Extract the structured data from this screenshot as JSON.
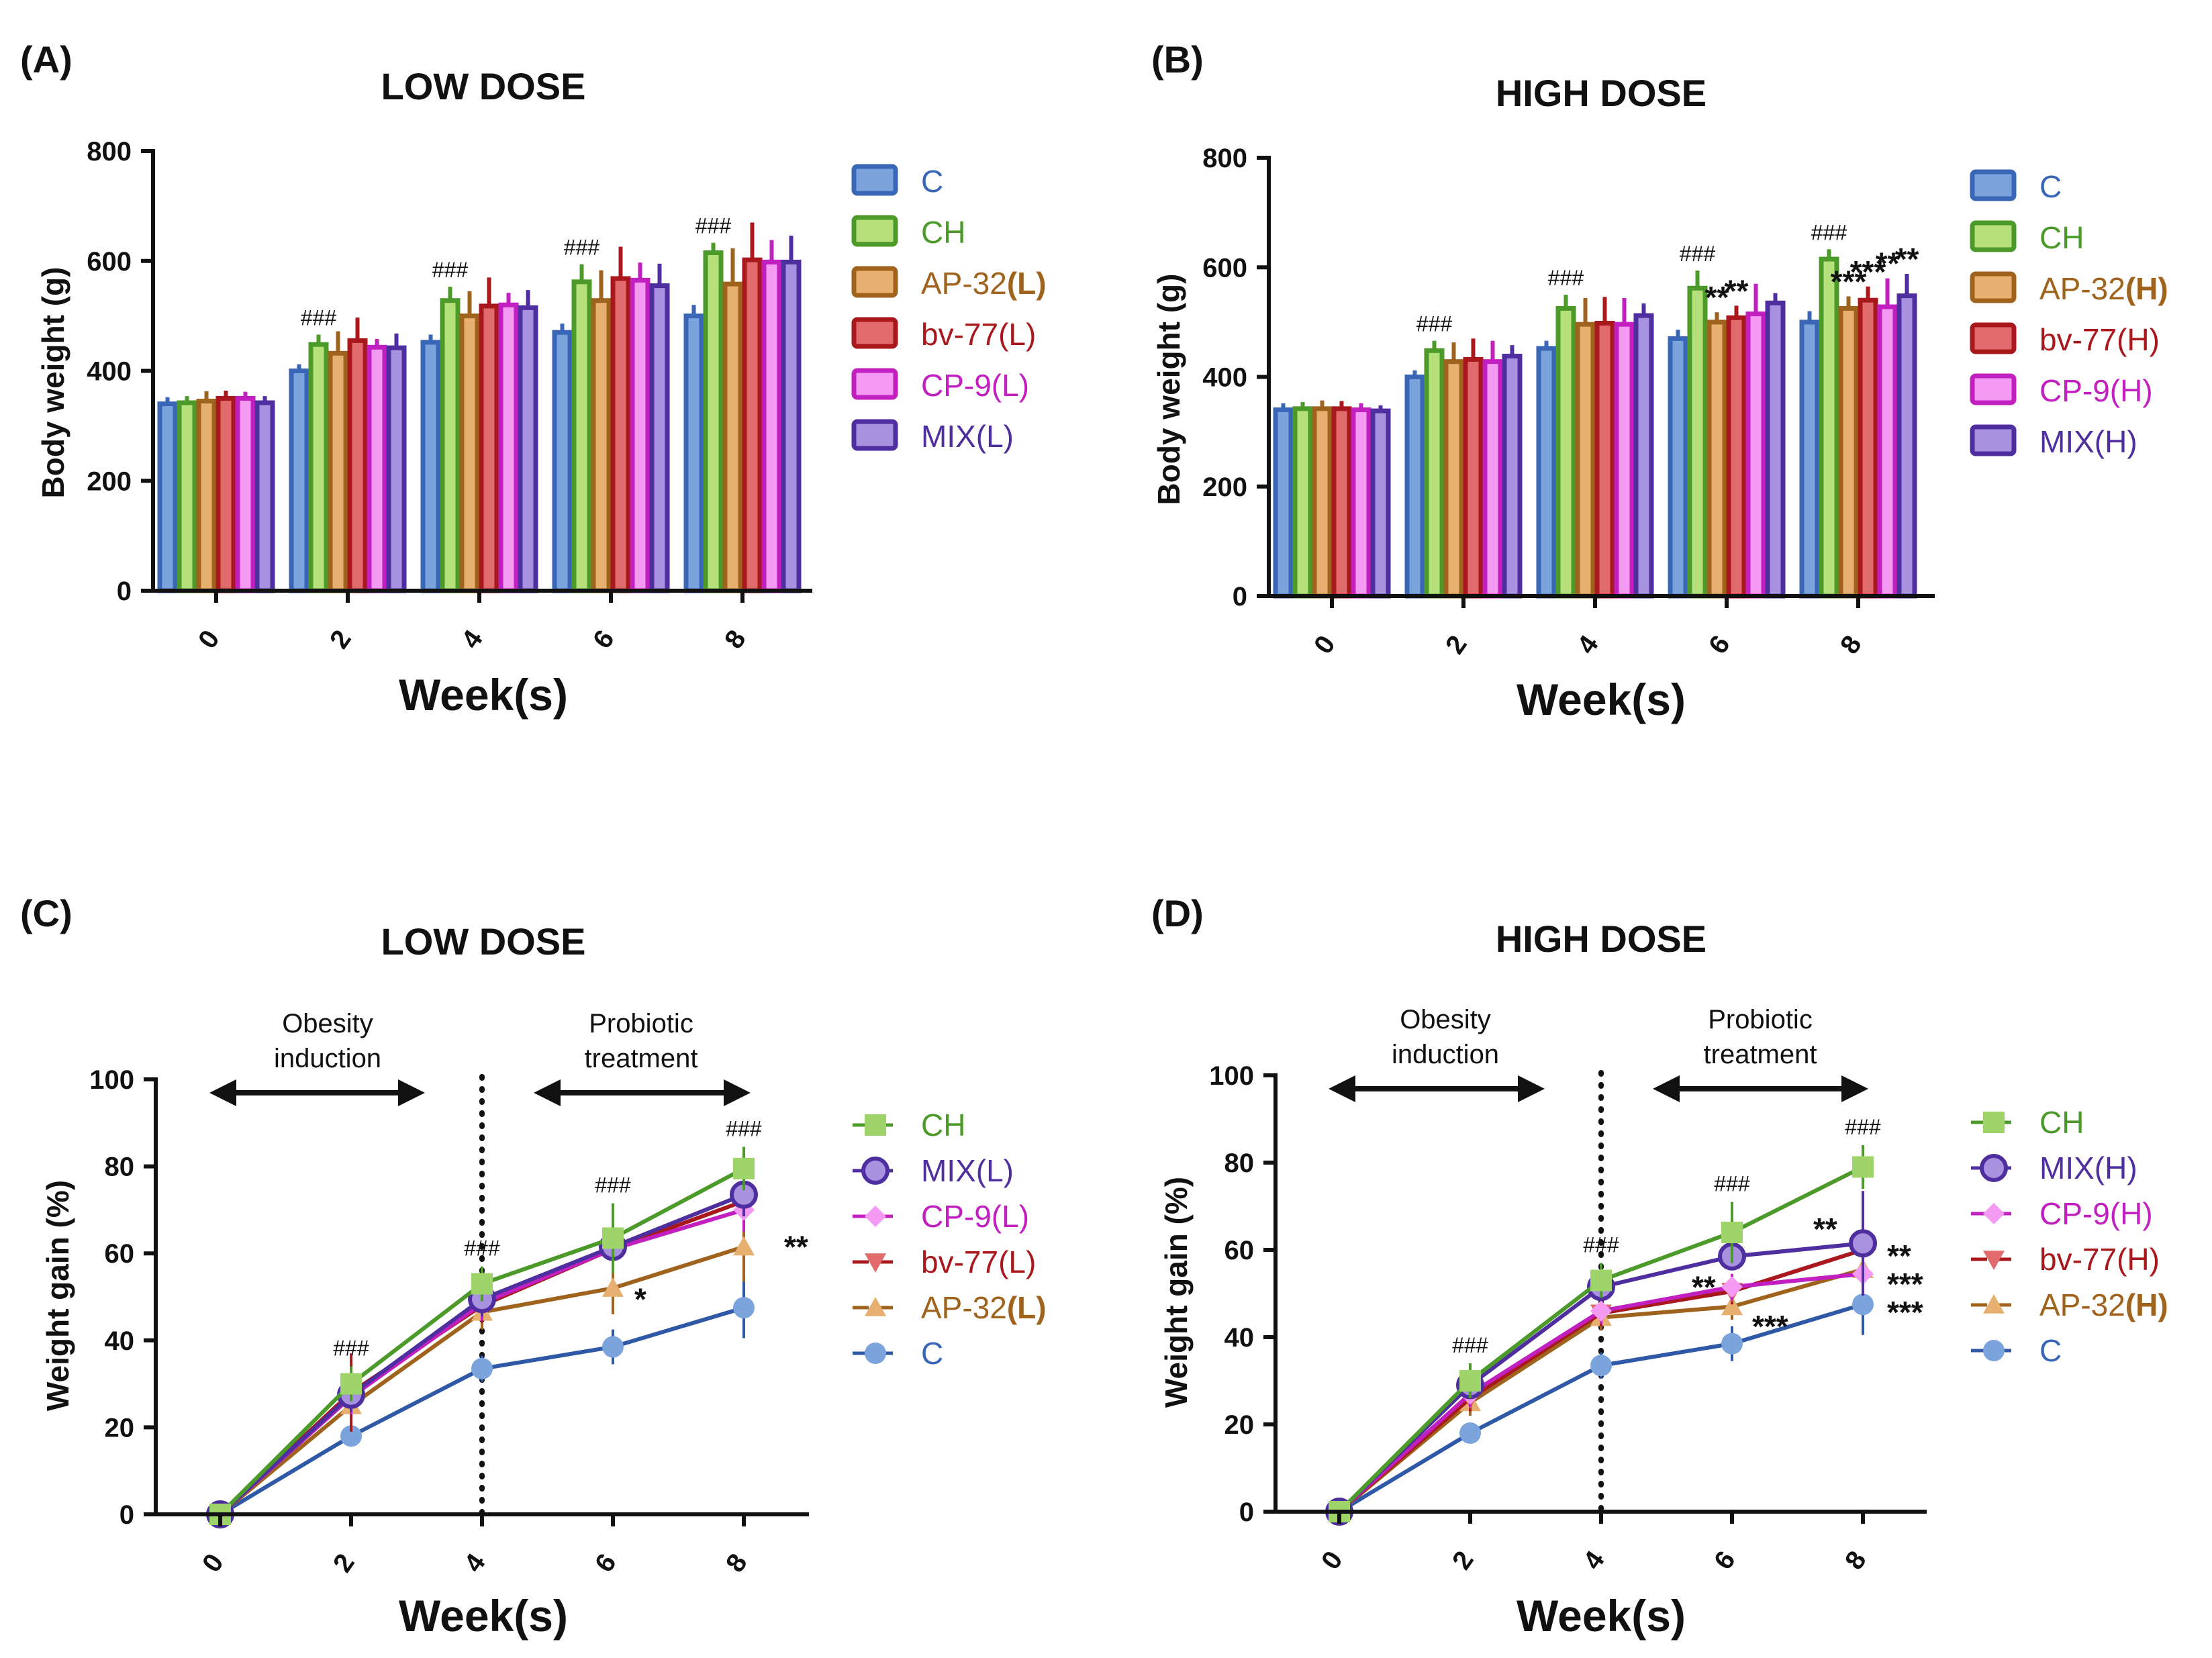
{
  "colors": {
    "C": "#3a66b8",
    "C_line": "#2f59a6",
    "C_fill": "#7ba3dc",
    "CH": "#4c9a2a",
    "CH_fill": "#b6e07c",
    "CH_marker": "#9fd46a",
    "AP": "#a0631d",
    "AP_fill": "#e8b070",
    "BV": "#a8181c",
    "BV_fill": "#e06a6c",
    "CP": "#c11fbf",
    "CP_fill": "#f49af3",
    "MIX": "#4f2fa0",
    "MIX_fill": "#a892df"
  },
  "panels": {
    "A": {
      "label": "(A)",
      "title": "LOW DOSE",
      "ylabel": "Body weight (g)",
      "xlabel": "Week(s)",
      "legend": [
        {
          "key": "C",
          "pre": "C",
          "bold": ""
        },
        {
          "key": "CH",
          "pre": "CH",
          "bold": ""
        },
        {
          "key": "AP",
          "pre": "AP-32",
          "bold": "(L)"
        },
        {
          "key": "BV",
          "pre": "bv-77(L)",
          "bold": ""
        },
        {
          "key": "CP",
          "pre": "CP-9(L)",
          "bold": ""
        },
        {
          "key": "MIX",
          "pre": "MIX(L)",
          "bold": ""
        }
      ],
      "hash_labels": [
        "",
        "###",
        "###",
        "###",
        "###"
      ],
      "stars": [
        {
          "wi": 3,
          "text": "",
          "series": 2
        },
        {
          "wi": 4,
          "text": "",
          "series": 2
        }
      ]
    },
    "B": {
      "label": "(B)",
      "title": "HIGH DOSE",
      "ylabel": "Body weight (g)",
      "xlabel": "Week(s)",
      "legend": [
        {
          "key": "C",
          "pre": "C",
          "bold": ""
        },
        {
          "key": "CH",
          "pre": "CH",
          "bold": ""
        },
        {
          "key": "AP",
          "pre": "AP-32",
          "bold": "(H)"
        },
        {
          "key": "BV",
          "pre": "bv-77(H)",
          "bold": ""
        },
        {
          "key": "CP",
          "pre": "CP-9(H)",
          "bold": ""
        },
        {
          "key": "MIX",
          "pre": "MIX(H)",
          "bold": ""
        }
      ],
      "hash_labels": [
        "",
        "###",
        "###",
        "###",
        "###"
      ],
      "stars": [
        {
          "wi": 3,
          "series": 2,
          "text": "**"
        },
        {
          "wi": 3,
          "series": 3,
          "text": "**"
        },
        {
          "wi": 4,
          "series": 2,
          "text": "***"
        },
        {
          "wi": 4,
          "series": 3,
          "text": "***"
        },
        {
          "wi": 4,
          "series": 4,
          "text": "**"
        },
        {
          "wi": 4,
          "series": 5,
          "text": "**"
        }
      ]
    },
    "C": {
      "label": "(C)",
      "title": "LOW DOSE",
      "ylabel": "Weight gain (%)",
      "xlabel": "Week(s)",
      "annotations": {
        "left": [
          "Obesity",
          "induction"
        ],
        "right": [
          "Probiotic",
          "treatment"
        ]
      },
      "legend": [
        {
          "key": "CH",
          "pre": "CH",
          "bold": "",
          "marker": "square"
        },
        {
          "key": "MIX",
          "pre": "MIX(L)",
          "bold": "",
          "marker": "circle"
        },
        {
          "key": "CP",
          "pre": "CP-9(L)",
          "bold": "",
          "marker": "diamond"
        },
        {
          "key": "BV",
          "pre": "bv-77(L)",
          "bold": "",
          "marker": "tri-down"
        },
        {
          "key": "AP",
          "pre": "AP-32",
          "bold": "(L)",
          "marker": "tri-up"
        },
        {
          "key": "C",
          "pre": "C",
          "bold": "",
          "marker": "dot"
        }
      ],
      "hash_labels": [
        "",
        "###",
        "###",
        "###",
        "###"
      ],
      "stars": [
        {
          "wi": 3,
          "text": "*"
        },
        {
          "wi": 4,
          "text": "**"
        }
      ]
    },
    "D": {
      "label": "(D)",
      "title": "HIGH DOSE",
      "ylabel": "Weight gain (%)",
      "xlabel": "Week(s)",
      "annotations": {
        "left": [
          "Obesity",
          "induction"
        ],
        "right": [
          "Probiotic",
          "treatment"
        ]
      },
      "legend": [
        {
          "key": "CH",
          "pre": "CH",
          "bold": "",
          "marker": "square"
        },
        {
          "key": "MIX",
          "pre": "MIX(H)",
          "bold": "",
          "marker": "circle"
        },
        {
          "key": "CP",
          "pre": "CP-9(H)",
          "bold": "",
          "marker": "diamond"
        },
        {
          "key": "BV",
          "pre": "bv-77(H)",
          "bold": "",
          "marker": "tri-down"
        },
        {
          "key": "AP",
          "pre": "AP-32",
          "bold": "(H)",
          "marker": "tri-up"
        },
        {
          "key": "C",
          "pre": "C",
          "bold": "",
          "marker": "dot"
        }
      ],
      "hash_labels": [
        "",
        "###",
        "###",
        "###",
        "###"
      ],
      "stars": [
        {
          "wi": 3,
          "text": "**"
        },
        {
          "wi": 3,
          "text": "***"
        },
        {
          "wi": 4,
          "text": "**"
        },
        {
          "wi": 4,
          "text": "**"
        },
        {
          "wi": 4,
          "text": "***"
        },
        {
          "wi": 4,
          "text": "***"
        }
      ]
    }
  },
  "chart_data": [
    {
      "id": "A",
      "type": "bar",
      "title": "LOW DOSE",
      "xlabel": "Week(s)",
      "ylabel": "Body weight (g)",
      "categories": [
        "0",
        "2",
        "4",
        "6",
        "8"
      ],
      "ylim": [
        0,
        800
      ],
      "yticks": [
        0,
        200,
        400,
        600,
        800
      ],
      "series": [
        {
          "name": "C",
          "key": "C",
          "values": [
            340,
            400,
            452,
            470,
            500
          ],
          "errors": [
            12,
            12,
            14,
            16,
            20
          ]
        },
        {
          "name": "CH",
          "key": "CH",
          "values": [
            342,
            448,
            528,
            562,
            615
          ],
          "errors": [
            12,
            18,
            25,
            32,
            18
          ]
        },
        {
          "name": "AP-32(L)",
          "key": "AP",
          "values": [
            345,
            432,
            500,
            528,
            558
          ],
          "errors": [
            18,
            40,
            45,
            55,
            65
          ]
        },
        {
          "name": "bv-77(L)",
          "key": "BV",
          "values": [
            350,
            455,
            518,
            568,
            602
          ],
          "errors": [
            14,
            42,
            52,
            58,
            68
          ]
        },
        {
          "name": "CP-9(L)",
          "key": "CP",
          "values": [
            350,
            443,
            520,
            565,
            598
          ],
          "errors": [
            12,
            15,
            22,
            32,
            40
          ]
        },
        {
          "name": "MIX(L)",
          "key": "MIX",
          "values": [
            342,
            442,
            515,
            555,
            598
          ],
          "errors": [
            12,
            26,
            32,
            40,
            48
          ]
        }
      ]
    },
    {
      "id": "B",
      "type": "bar",
      "title": "HIGH DOSE",
      "xlabel": "Week(s)",
      "ylabel": "Body weight (g)",
      "categories": [
        "0",
        "2",
        "4",
        "6",
        "8"
      ],
      "ylim": [
        0,
        800
      ],
      "yticks": [
        0,
        200,
        400,
        600,
        800
      ],
      "series": [
        {
          "name": "C",
          "key": "C",
          "values": [
            340,
            400,
            452,
            470,
            500
          ],
          "errors": [
            12,
            12,
            14,
            16,
            20
          ]
        },
        {
          "name": "CH",
          "key": "CH",
          "values": [
            342,
            448,
            525,
            562,
            615
          ],
          "errors": [
            12,
            18,
            25,
            32,
            18
          ]
        },
        {
          "name": "AP-32(H)",
          "key": "AP",
          "values": [
            342,
            428,
            496,
            500,
            525
          ],
          "errors": [
            15,
            35,
            48,
            18,
            22
          ]
        },
        {
          "name": "bv-77(H)",
          "key": "BV",
          "values": [
            342,
            432,
            498,
            508,
            540
          ],
          "errors": [
            14,
            38,
            48,
            22,
            25
          ]
        },
        {
          "name": "CP-9(H)",
          "key": "CP",
          "values": [
            340,
            428,
            496,
            515,
            528
          ],
          "errors": [
            12,
            38,
            48,
            55,
            52
          ]
        },
        {
          "name": "MIX(H)",
          "key": "MIX",
          "values": [
            338,
            438,
            512,
            535,
            548
          ],
          "errors": [
            10,
            20,
            22,
            18,
            40
          ]
        }
      ]
    },
    {
      "id": "C",
      "type": "line",
      "title": "LOW DOSE",
      "xlabel": "Week(s)",
      "ylabel": "Weight gain (%)",
      "x": [
        0,
        2,
        4,
        6,
        8
      ],
      "ylim": [
        0,
        100
      ],
      "yticks": [
        0,
        20,
        40,
        60,
        80,
        100
      ],
      "divider_x": 4,
      "series": [
        {
          "name": "C",
          "key": "C",
          "marker": "dot",
          "values": [
            0,
            18,
            33.5,
            38.5,
            47.5
          ],
          "errors": [
            0,
            2,
            3,
            4,
            7
          ]
        },
        {
          "name": "AP-32(L)",
          "key": "AP",
          "marker": "tri-up",
          "values": [
            0,
            25,
            46.5,
            52,
            61.5
          ],
          "errors": [
            0,
            4,
            4,
            6,
            8
          ]
        },
        {
          "name": "bv-77(L)",
          "key": "BV",
          "marker": "tri-down",
          "values": [
            0,
            28,
            48,
            61,
            72
          ],
          "errors": [
            0,
            9,
            4,
            5,
            5
          ]
        },
        {
          "name": "CP-9(L)",
          "key": "CP",
          "marker": "diamond",
          "values": [
            0,
            27,
            48.5,
            61,
            70
          ],
          "errors": [
            0,
            4,
            4,
            5,
            5
          ]
        },
        {
          "name": "MIX(L)",
          "key": "MIX",
          "marker": "circle",
          "values": [
            0,
            27.5,
            49.5,
            61.5,
            73.5
          ],
          "errors": [
            0,
            4,
            4,
            5,
            5
          ]
        },
        {
          "name": "CH",
          "key": "CH",
          "marker": "square",
          "values": [
            0,
            30,
            53,
            63.5,
            79.5
          ],
          "errors": [
            0,
            4,
            4,
            8,
            5
          ]
        }
      ]
    },
    {
      "id": "D",
      "type": "line",
      "title": "HIGH DOSE",
      "xlabel": "Week(s)",
      "ylabel": "Weight gain (%)",
      "x": [
        0,
        2,
        4,
        6,
        8
      ],
      "ylim": [
        0,
        100
      ],
      "yticks": [
        0,
        20,
        40,
        60,
        80,
        100
      ],
      "divider_x": 4,
      "series": [
        {
          "name": "C",
          "key": "C",
          "marker": "dot",
          "values": [
            0,
            18,
            33.5,
            38.5,
            47.5
          ],
          "errors": [
            0,
            2,
            3,
            4,
            7
          ]
        },
        {
          "name": "AP-32(H)",
          "key": "AP",
          "marker": "tri-up",
          "values": [
            0,
            25,
            44.5,
            47,
            55.5
          ],
          "errors": [
            0,
            3,
            3,
            3,
            3
          ]
        },
        {
          "name": "bv-77(H)",
          "key": "BV",
          "marker": "tri-down",
          "values": [
            0,
            26,
            45.5,
            50.5,
            60
          ],
          "errors": [
            0,
            3,
            3,
            3,
            3
          ]
        },
        {
          "name": "CP-9(H)",
          "key": "CP",
          "marker": "diamond",
          "values": [
            0,
            27,
            46,
            51.5,
            54.5
          ],
          "errors": [
            0,
            3,
            3,
            3,
            3
          ]
        },
        {
          "name": "MIX(H)",
          "key": "MIX",
          "marker": "circle",
          "values": [
            0,
            29,
            51.5,
            58.5,
            61.5
          ],
          "errors": [
            0,
            3,
            3,
            3,
            12
          ]
        },
        {
          "name": "CH",
          "key": "CH",
          "marker": "square",
          "values": [
            0,
            30,
            53,
            64,
            79
          ],
          "errors": [
            0,
            4,
            4,
            7,
            5
          ]
        }
      ]
    }
  ]
}
